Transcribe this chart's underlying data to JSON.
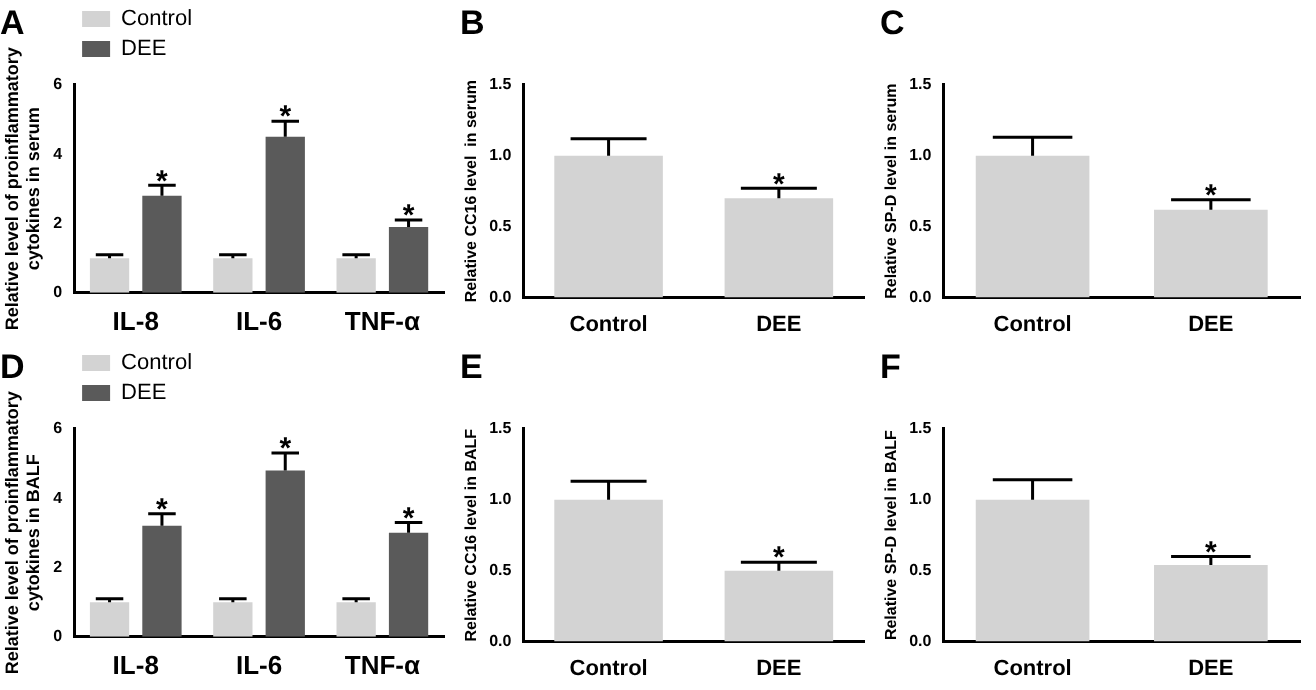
{
  "chart_data": [
    {
      "type": "bar",
      "title": "A",
      "ylabel": "Relative level of proinflammatory\ncytokines in serum",
      "categories": [
        "IL-8",
        "IL-6",
        "TNF-α"
      ],
      "series": [
        {
          "name": "Control",
          "color": "#d3d3d3",
          "values": [
            1.0,
            1.0,
            1.0
          ],
          "errors": [
            [
              1.0,
              1.1
            ],
            [
              1.0,
              1.1
            ],
            [
              1.0,
              1.1
            ]
          ]
        },
        {
          "name": "DEE",
          "color": "#5a5a5a",
          "values": [
            2.8,
            4.5,
            1.9
          ],
          "errors": [
            [
              2.8,
              3.1
            ],
            [
              4.5,
              4.95
            ],
            [
              1.9,
              2.1
            ]
          ]
        }
      ],
      "ylim": [
        0,
        6
      ],
      "yticks": [
        0,
        2,
        4,
        6
      ],
      "grid": false,
      "legend": "top left",
      "annotations": [
        "*",
        "*",
        "*"
      ]
    },
    {
      "type": "bar",
      "title": "B",
      "ylabel": "Relative CC16 level  in serum",
      "categories": [
        "Control",
        "DEE"
      ],
      "values": [
        1.0,
        0.7
      ],
      "color": "#d3d3d3",
      "errors": [
        [
          1.0,
          1.12
        ],
        [
          0.7,
          0.77
        ]
      ],
      "ylim": [
        0,
        1.5
      ],
      "yticks": [
        {
          "value": 0,
          "label": "0.0"
        },
        {
          "value": 0.5,
          "label": "0.5"
        },
        {
          "value": 1,
          "label": "1.0"
        },
        {
          "value": 1.5,
          "label": "1.5"
        }
      ],
      "grid": false,
      "annotations": [
        "*"
      ]
    },
    {
      "type": "bar",
      "title": "C",
      "ylabel": "Relative SP-D level in serum",
      "categories": [
        "Control",
        "DEE"
      ],
      "values": [
        1.0,
        0.62
      ],
      "color": "#d3d3d3",
      "errors": [
        [
          1.0,
          1.13
        ],
        [
          0.62,
          0.69
        ]
      ],
      "ylim": [
        0,
        1.5
      ],
      "yticks": [
        {
          "value": 0,
          "label": "0.0"
        },
        {
          "value": 0.5,
          "label": "0.5"
        },
        {
          "value": 1,
          "label": "1.0"
        },
        {
          "value": 1.5,
          "label": "1.5"
        }
      ],
      "grid": false,
      "annotations": [
        "*"
      ]
    },
    {
      "type": "bar",
      "title": "D",
      "ylabel": "Relative level of proinflammatory\ncytokines in BALF",
      "categories": [
        "IL-8",
        "IL-6",
        "TNF-α"
      ],
      "series": [
        {
          "name": "Control",
          "color": "#d3d3d3",
          "values": [
            1.0,
            1.0,
            1.0
          ],
          "errors": [
            [
              1.0,
              1.1
            ],
            [
              1.0,
              1.1
            ],
            [
              1.0,
              1.1
            ]
          ]
        },
        {
          "name": "DEE",
          "color": "#5a5a5a",
          "values": [
            3.2,
            4.8,
            3.0
          ],
          "errors": [
            [
              3.2,
              3.55
            ],
            [
              4.8,
              5.3
            ],
            [
              3.0,
              3.3
            ]
          ]
        }
      ],
      "ylim": [
        0,
        6
      ],
      "yticks": [
        0,
        2,
        4,
        6
      ],
      "grid": false,
      "legend": "top left",
      "annotations": [
        "*",
        "*",
        "*"
      ]
    },
    {
      "type": "bar",
      "title": "E",
      "ylabel": "Relative CC16 level in BALF",
      "categories": [
        "Control",
        "DEE"
      ],
      "values": [
        1.0,
        0.5
      ],
      "color": "#d3d3d3",
      "errors": [
        [
          1.0,
          1.13
        ],
        [
          0.5,
          0.56
        ]
      ],
      "ylim": [
        0,
        1.5
      ],
      "yticks": [
        {
          "value": 0,
          "label": "0.0"
        },
        {
          "value": 0.5,
          "label": "0.5"
        },
        {
          "value": 1,
          "label": "1.0"
        },
        {
          "value": 1.5,
          "label": "1.5"
        }
      ],
      "grid": false,
      "annotations": [
        "*"
      ]
    },
    {
      "type": "bar",
      "title": "F",
      "ylabel": "Relative SP-D level in BALF",
      "categories": [
        "Control",
        "DEE"
      ],
      "values": [
        1.0,
        0.54
      ],
      "color": "#d3d3d3",
      "errors": [
        [
          1.0,
          1.14
        ],
        [
          0.54,
          0.6
        ]
      ],
      "ylim": [
        0,
        1.5
      ],
      "yticks": [
        {
          "value": 0,
          "label": "0.0"
        },
        {
          "value": 0.5,
          "label": "0.5"
        },
        {
          "value": 1,
          "label": "1.0"
        },
        {
          "value": 1.5,
          "label": "1.5"
        }
      ],
      "grid": false,
      "annotations": [
        "*"
      ]
    }
  ]
}
